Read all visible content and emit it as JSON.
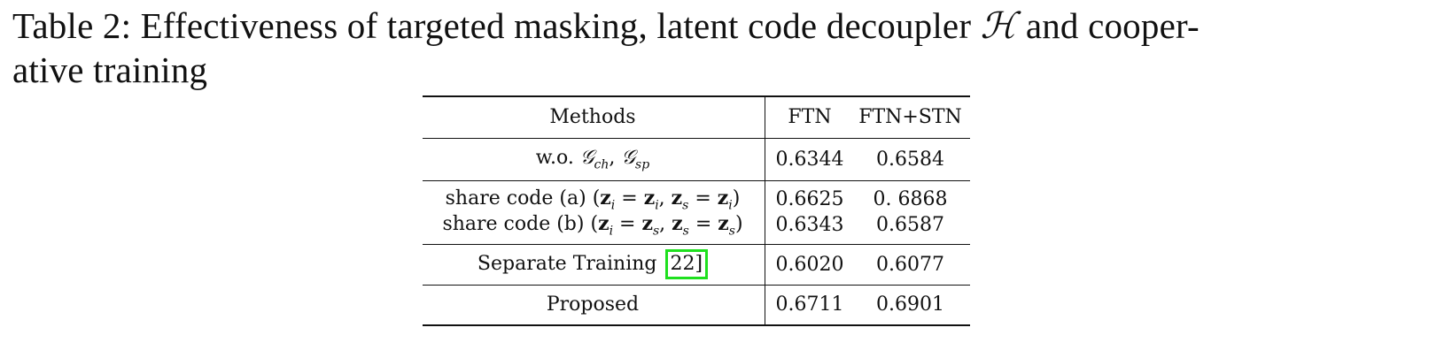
{
  "caption": {
    "prefix": "Table 2: Effectiveness of targeted masking, latent code decoupler ",
    "symbol": "ℋ",
    "suffix": " and cooper-",
    "line2": "ative training"
  },
  "table": {
    "headers": {
      "method": "Methods",
      "ftn": "FTN",
      "stn": "FTN+STN"
    },
    "rows": [
      {
        "method_prefix": "w.o. ",
        "method_math": "𝒢ch, 𝒢sp",
        "ftn": "0.6344",
        "stn": "0.6584"
      },
      {
        "method_prefix": "share code (a) ",
        "method_math": "(zi = zi, zs = zi)",
        "ftn": "0.6625",
        "stn": "0. 6868"
      },
      {
        "method_prefix": "share code (b) ",
        "method_math": "(zi = zs, zs = zs)",
        "ftn": "0.6343",
        "stn": "0.6587"
      },
      {
        "method_prefix": "Separate Training ",
        "method_ref": "22]",
        "ftn": "0.6020",
        "stn": "0.6077"
      },
      {
        "method_prefix": "Proposed",
        "ftn": "0.6711",
        "stn": "0.6901"
      }
    ]
  }
}
